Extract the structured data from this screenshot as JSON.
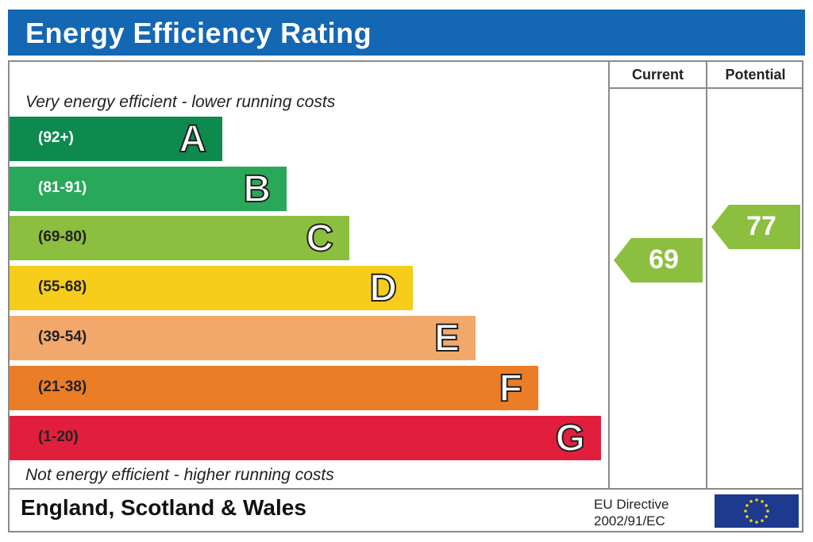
{
  "header": {
    "title": "Energy Efficiency Rating"
  },
  "columns": {
    "current": "Current",
    "potential": "Potential"
  },
  "notes": {
    "top": "Very energy efficient - lower running costs",
    "bottom": "Not energy efficient - higher running costs"
  },
  "bands": [
    {
      "letter": "A",
      "range": "(92+)",
      "color": "#0e8a4f"
    },
    {
      "letter": "B",
      "range": "(81-91)",
      "color": "#2aa85a"
    },
    {
      "letter": "C",
      "range": "(69-80)",
      "color": "#8cbf3f"
    },
    {
      "letter": "D",
      "range": "(55-68)",
      "color": "#f5cd1a"
    },
    {
      "letter": "E",
      "range": "(39-54)",
      "color": "#f2a86b"
    },
    {
      "letter": "F",
      "range": "(21-38)",
      "color": "#ec7d27"
    },
    {
      "letter": "G",
      "range": "(1-20)",
      "color": "#e11f3d"
    }
  ],
  "ratings": {
    "current": {
      "value": "69",
      "color": "#8cbf3f"
    },
    "potential": {
      "value": "77",
      "color": "#8cbf3f"
    }
  },
  "footer": {
    "region": "England, Scotland & Wales",
    "directive_line1": "EU Directive",
    "directive_line2": "2002/91/EC"
  }
}
